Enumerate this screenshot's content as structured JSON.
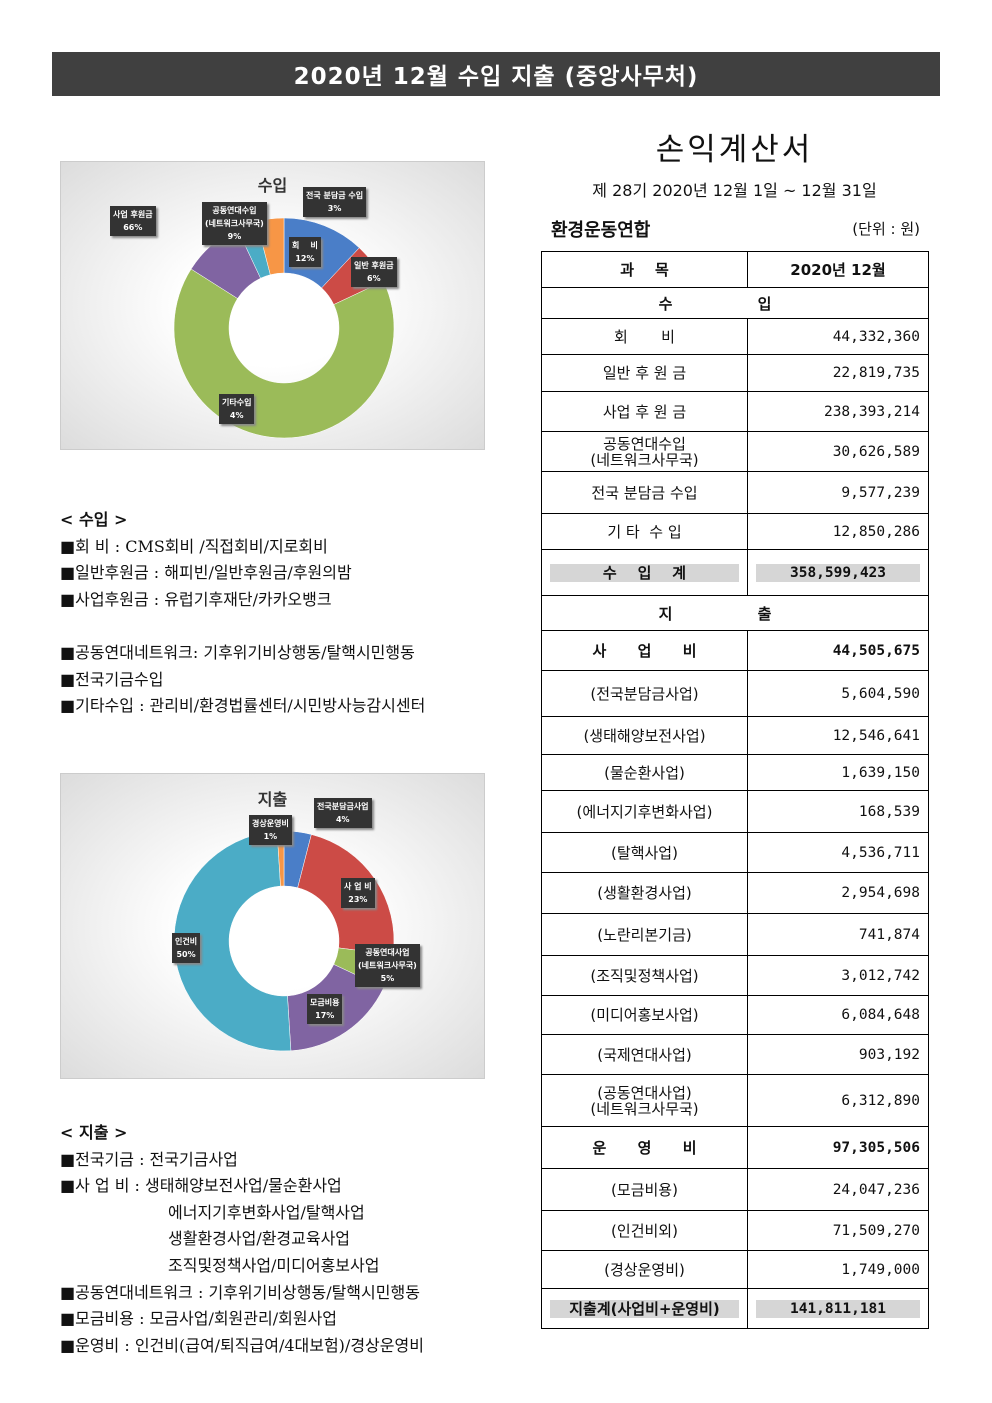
{
  "banner": "2020년 12월 수입 지출 (중앙사무처)",
  "statement": {
    "title": "손익계산서",
    "period": "제 28기 2020년 12월 1일  ~ 12월 31일",
    "org": "환경운동연합",
    "unit": "(단위 : 원)"
  },
  "table": {
    "header": [
      "과    목",
      "2020년 12월"
    ],
    "rows": [
      {
        "type": "sec",
        "label": "수 입"
      },
      {
        "label": "회       비",
        "value": "44,332,360"
      },
      {
        "label": "일반 후 원 금",
        "value": "22,819,735"
      },
      {
        "label": "사업 후 원 금",
        "value": "238,393,214"
      },
      {
        "label": "공동연대수입\n(네트워크사무국)",
        "value": "30,626,589"
      },
      {
        "label": "전국 분담금 수입",
        "value": "9,577,239"
      },
      {
        "label": "기 타  수 입",
        "value": "12,850,286"
      },
      {
        "type": "total",
        "label": "수    입    계",
        "value": "358,599,423"
      },
      {
        "type": "sec",
        "label": "지 출"
      },
      {
        "type": "bold",
        "label": "사      업      비",
        "value": "44,505,675"
      },
      {
        "label": "(전국분담금사업)",
        "value": "5,604,590"
      },
      {
        "label": "(생태해양보전사업)",
        "value": "12,546,641"
      },
      {
        "label": "(물순환사업)",
        "value": "1,639,150"
      },
      {
        "label": "(에너지기후변화사업)",
        "value": "168,539"
      },
      {
        "label": "(탈핵사업)",
        "value": "4,536,711"
      },
      {
        "label": "(생활환경사업)",
        "value": "2,954,698"
      },
      {
        "label": "(노란리본기금)",
        "value": "741,874"
      },
      {
        "label": "(조직및정책사업)",
        "value": "3,012,742"
      },
      {
        "label": "(미디어홍보사업)",
        "value": "6,084,648"
      },
      {
        "label": "(국제연대사업)",
        "value": "903,192"
      },
      {
        "label": "(공동연대사업)\n(네트워크사무국)",
        "value": "6,312,890"
      },
      {
        "type": "bold",
        "label": "운      영      비",
        "value": "97,305,506"
      },
      {
        "label": "(모금비용)",
        "value": "24,047,236"
      },
      {
        "label": "(인건비외)",
        "value": "71,509,270"
      },
      {
        "label": "(경상운영비)",
        "value": "1,749,000"
      },
      {
        "type": "total",
        "label": "지출계(사업비+운영비)",
        "value": "141,811,181"
      }
    ]
  },
  "income_notes": {
    "heading": "< 수입 >",
    "items": [
      "■회 비 : CMS회비 /직접회비/지로회비",
      "■일반후원금 : 해피빈/일반후원금/후원의밤",
      "■사업후원금 : 유럽기후재단/카카오뱅크",
      "",
      "■공동연대네트워크: 기후위기비상행동/탈핵시민행동",
      "■전국기금수입",
      "■기타수입 : 관리비/환경법률센터/시민방사능감시센터"
    ]
  },
  "expense_notes": {
    "heading": "< 지출 >",
    "items": [
      "■전국기금 : 전국기금사업",
      "■사 업 비 : 생태해양보전사업/물순환사업",
      "에너지기후변화사업/탈핵사업",
      "생활환경사업/환경교육사업",
      "조직및정책사업/미디어홍보사업",
      "■공동연대네트워크 : 기후위기비상행동/탈핵시민행동",
      "■모금비용 : 모금사업/회원관리/회원사업",
      "■운영비 : 인건비(급여/퇴직급여/4대보험)/경상운영비"
    ]
  },
  "chart_data": [
    {
      "type": "pie",
      "title": "수입",
      "donut": true,
      "labels": [
        "회    비",
        "일반 후원금",
        "사업 후원금",
        "공동연대수입\n(네트워크사무국)",
        "전국 분담금 수입",
        "기타수입"
      ],
      "values": [
        12,
        6,
        66,
        9,
        3,
        4
      ],
      "display": [
        "12%",
        "6%",
        "66%",
        "9%",
        "3%",
        "4%"
      ],
      "colors": [
        "#4a7ec8",
        "#cc4b46",
        "#9bbb59",
        "#8064a2",
        "#4bacc6",
        "#f79646"
      ]
    },
    {
      "type": "pie",
      "title": "지출",
      "donut": true,
      "labels": [
        "전국분담금사업",
        "사 업 비",
        "공동연대사업\n(네트워크사무국)",
        "모금비용",
        "인건비",
        "경상운영비"
      ],
      "values": [
        4,
        23,
        5,
        17,
        50,
        1
      ],
      "display": [
        "4%",
        "23%",
        "5%",
        "17%",
        "50%",
        "1%"
      ],
      "colors": [
        "#4a7ec8",
        "#cc4b46",
        "#9bbb59",
        "#8064a2",
        "#4bacc6",
        "#f79646"
      ]
    }
  ]
}
